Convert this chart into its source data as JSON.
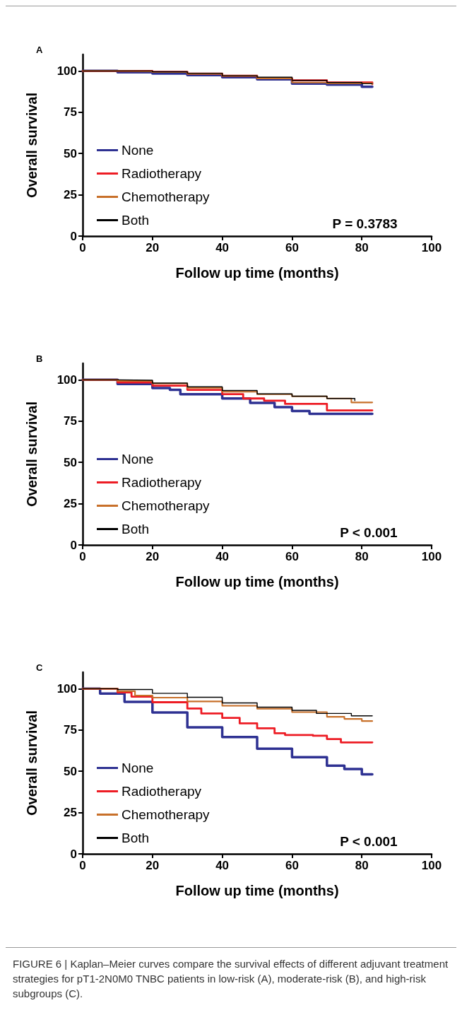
{
  "chart_data": [
    {
      "type": "step",
      "title": "A",
      "xlabel": "Follow up time (months)",
      "ylabel": "Overall survival",
      "xlim": [
        0,
        100
      ],
      "xticks": [
        0,
        20,
        40,
        60,
        80,
        100
      ],
      "ylim": [
        0,
        110
      ],
      "yticks": [
        0,
        25,
        50,
        75,
        100
      ],
      "grid": false,
      "legend": "bottom left",
      "line_style": "solid",
      "annotations": [
        "P = 0.3783"
      ],
      "series": [
        {
          "name": "None",
          "color": "#2e3192",
          "x": [
            0,
            10,
            20,
            30,
            40,
            50,
            60,
            70,
            80,
            83
          ],
          "values": [
            100,
            99.2,
            98.4,
            97.5,
            96.2,
            94.9,
            92.3,
            91.7,
            90.4,
            90.4
          ]
        },
        {
          "name": "Radiotherapy",
          "color": "#ed1c24",
          "x": [
            0,
            10,
            20,
            30,
            40,
            50,
            60,
            70,
            83
          ],
          "values": [
            100,
            100,
            99.5,
            98.4,
            97.1,
            95.6,
            94.3,
            93,
            92
          ]
        },
        {
          "name": "Chemotherapy",
          "color": "#c8702a",
          "x": [
            0,
            10,
            20,
            30,
            40,
            50,
            60,
            70,
            83
          ],
          "values": [
            100,
            99.8,
            99.3,
            98.3,
            97,
            95.5,
            93,
            92.5,
            92
          ]
        },
        {
          "name": "Both",
          "color": "#000000",
          "x": [
            0,
            10,
            20,
            30,
            40,
            50,
            60,
            70,
            80,
            83
          ],
          "values": [
            100,
            100,
            99.5,
            98.6,
            97.1,
            96.2,
            94.3,
            93,
            92.3,
            92.3
          ]
        }
      ]
    },
    {
      "type": "step",
      "title": "B",
      "xlabel": "Follow up time (months)",
      "ylabel": "Overall survival",
      "xlim": [
        0,
        100
      ],
      "xticks": [
        0,
        20,
        40,
        60,
        80,
        100
      ],
      "ylim": [
        0,
        110
      ],
      "yticks": [
        0,
        25,
        50,
        75,
        100
      ],
      "grid": false,
      "legend": "bottom left",
      "line_style": "solid",
      "annotations": [
        "P < 0.001"
      ],
      "series": [
        {
          "name": "None",
          "color": "#2e3192",
          "x": [
            0,
            10,
            20,
            25,
            28,
            40,
            48,
            55,
            60,
            65,
            83
          ],
          "values": [
            100,
            97.5,
            95,
            93.9,
            91.3,
            88.7,
            86,
            83.5,
            81.1,
            79.4,
            79.4
          ]
        },
        {
          "name": "Radiotherapy",
          "color": "#ed1c24",
          "x": [
            0,
            10,
            20,
            30,
            40,
            46,
            52,
            58,
            70,
            83
          ],
          "values": [
            100,
            98.4,
            96.5,
            93.9,
            91.3,
            88.7,
            87.4,
            85.4,
            81.5,
            81.5
          ]
        },
        {
          "name": "Chemotherapy",
          "color": "#c8702a",
          "x": [
            0,
            10,
            20,
            30,
            40,
            50,
            60,
            70,
            77,
            83
          ],
          "values": [
            100,
            99.3,
            97.8,
            95.2,
            92.8,
            91.3,
            90,
            88.7,
            86.3,
            86.3
          ]
        },
        {
          "name": "Both",
          "color": "#000000",
          "x": [
            0,
            10,
            20,
            30,
            40,
            50,
            60,
            70,
            78
          ],
          "values": [
            100,
            99.7,
            98,
            95.8,
            93.5,
            91.5,
            90.1,
            88.7,
            87.4
          ]
        }
      ]
    },
    {
      "type": "step",
      "title": "C",
      "xlabel": "Follow up time (months)",
      "ylabel": "Overall survival",
      "xlim": [
        0,
        100
      ],
      "xticks": [
        0,
        20,
        40,
        60,
        80,
        100
      ],
      "ylim": [
        0,
        110
      ],
      "yticks": [
        0,
        25,
        50,
        75,
        100
      ],
      "grid": false,
      "legend": "bottom left",
      "line_style": "solid",
      "annotations": [
        "P < 0.001",
        "FIGURE 6 | Kaplan–Meier curves compare the survival effects of different adjuvant treatment strategies for pT1-2N0M0 TNBC patients in low-risk (A), moderate-risk (B), and high-risk subgroups (C)."
      ],
      "series": [
        {
          "name": "None",
          "color": "#2e3192",
          "x": [
            0,
            5,
            12,
            20,
            30,
            40,
            50,
            60,
            70,
            75,
            80,
            83
          ],
          "values": [
            100,
            97,
            92,
            85.6,
            76.6,
            70.7,
            63.7,
            58.5,
            53.4,
            51.4,
            48.2,
            48.2
          ]
        },
        {
          "name": "Radiotherapy",
          "color": "#ed1c24",
          "x": [
            0,
            10,
            14,
            20,
            30,
            34,
            40,
            45,
            50,
            55,
            58,
            66,
            70,
            74,
            83
          ],
          "values": [
            100,
            97.8,
            95.2,
            91.8,
            88,
            85,
            82.3,
            79,
            76,
            73,
            72,
            71.5,
            69.5,
            67.5,
            67.5
          ]
        },
        {
          "name": "Chemotherapy",
          "color": "#c8702a",
          "x": [
            0,
            10,
            15,
            20,
            30,
            40,
            50,
            60,
            70,
            75,
            80,
            83
          ],
          "values": [
            100,
            98.5,
            95.9,
            94.6,
            92.3,
            89.7,
            87.9,
            85.8,
            83,
            81.7,
            80.4,
            80.4
          ]
        },
        {
          "name": "Both",
          "color": "#000000",
          "x": [
            0,
            10,
            20,
            30,
            40,
            50,
            60,
            67,
            77,
            83
          ],
          "values": [
            100,
            99.5,
            97.2,
            94.8,
            91.4,
            88.8,
            86.9,
            85,
            83.6,
            83.6
          ]
        }
      ]
    }
  ]
}
